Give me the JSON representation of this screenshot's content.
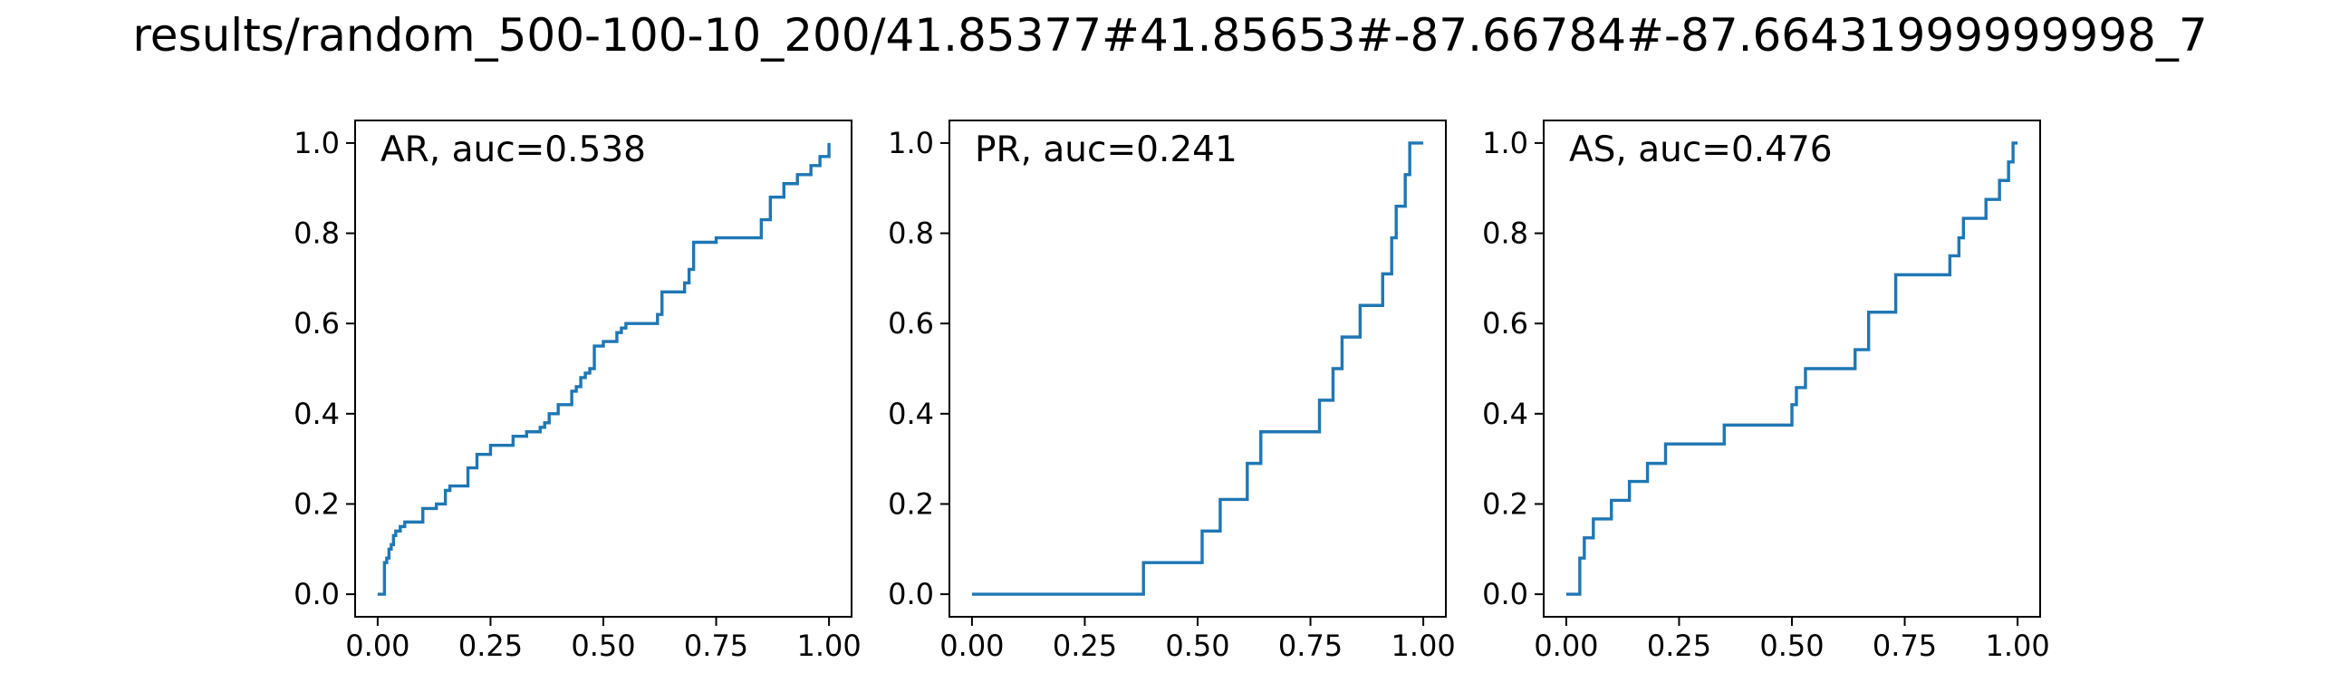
{
  "figure_title": "results/random_500-100-10_200/41.85377#41.85653#-87.66784#-87.66431999999998_7",
  "colors": {
    "line": "#1f77b4",
    "axes": "#000000",
    "background": "#ffffff"
  },
  "chart_data": [
    {
      "type": "line",
      "step": true,
      "title": "AR, auc=0.538",
      "title_placement": "top-left inside",
      "xlim": [
        -0.05,
        1.05
      ],
      "ylim": [
        -0.05,
        1.05
      ],
      "xticks": [
        "0.00",
        "0.25",
        "0.50",
        "0.75",
        "1.00"
      ],
      "yticks": [
        "0.0",
        "0.2",
        "0.4",
        "0.6",
        "0.8",
        "1.0"
      ],
      "grid": false,
      "series": [
        {
          "x": [
            0.0,
            0.015,
            0.015,
            0.02,
            0.025,
            0.03,
            0.035,
            0.04,
            0.05,
            0.06,
            0.1,
            0.13,
            0.15,
            0.16,
            0.2,
            0.22,
            0.25,
            0.3,
            0.33,
            0.36,
            0.37,
            0.38,
            0.4,
            0.43,
            0.44,
            0.45,
            0.46,
            0.47,
            0.48,
            0.5,
            0.53,
            0.54,
            0.55,
            0.62,
            0.63,
            0.68,
            0.69,
            0.7,
            0.75,
            0.8,
            0.85,
            0.87,
            0.9,
            0.93,
            0.96,
            0.98,
            1.0
          ],
          "y": [
            0.0,
            0.0,
            0.07,
            0.08,
            0.1,
            0.11,
            0.13,
            0.14,
            0.15,
            0.16,
            0.19,
            0.2,
            0.23,
            0.24,
            0.28,
            0.31,
            0.33,
            0.35,
            0.36,
            0.37,
            0.38,
            0.4,
            0.42,
            0.45,
            0.46,
            0.48,
            0.49,
            0.5,
            0.55,
            0.56,
            0.58,
            0.59,
            0.6,
            0.62,
            0.67,
            0.69,
            0.72,
            0.78,
            0.79,
            0.79,
            0.83,
            0.88,
            0.91,
            0.93,
            0.95,
            0.97,
            1.0
          ]
        }
      ]
    },
    {
      "type": "line",
      "step": true,
      "title": "PR, auc=0.241",
      "title_placement": "top-left inside",
      "xlim": [
        -0.05,
        1.05
      ],
      "ylim": [
        -0.05,
        1.05
      ],
      "xticks": [
        "0.00",
        "0.25",
        "0.50",
        "0.75",
        "1.00"
      ],
      "yticks": [
        "0.0",
        "0.2",
        "0.4",
        "0.6",
        "0.8",
        "1.0"
      ],
      "grid": false,
      "series": [
        {
          "x": [
            0.0,
            0.38,
            0.51,
            0.55,
            0.61,
            0.64,
            0.77,
            0.8,
            0.82,
            0.86,
            0.91,
            0.93,
            0.94,
            0.96,
            0.97,
            1.0
          ],
          "y": [
            0.0,
            0.07,
            0.14,
            0.21,
            0.29,
            0.36,
            0.43,
            0.5,
            0.57,
            0.64,
            0.71,
            0.79,
            0.86,
            0.93,
            1.0,
            1.0
          ]
        }
      ]
    },
    {
      "type": "line",
      "step": true,
      "title": "AS, auc=0.476",
      "title_placement": "top-left inside",
      "xlim": [
        -0.05,
        1.05
      ],
      "ylim": [
        -0.05,
        1.05
      ],
      "xticks": [
        "0.00",
        "0.25",
        "0.50",
        "0.75",
        "1.00"
      ],
      "yticks": [
        "0.0",
        "0.2",
        "0.4",
        "0.6",
        "0.8",
        "1.0"
      ],
      "grid": false,
      "series": [
        {
          "x": [
            0.0,
            0.03,
            0.03,
            0.04,
            0.06,
            0.1,
            0.14,
            0.18,
            0.22,
            0.35,
            0.5,
            0.5,
            0.51,
            0.53,
            0.64,
            0.67,
            0.73,
            0.85,
            0.87,
            0.88,
            0.93,
            0.96,
            0.98,
            0.99,
            1.0
          ],
          "y": [
            0.0,
            0.0,
            0.08,
            0.125,
            0.167,
            0.208,
            0.25,
            0.29,
            0.333,
            0.375,
            0.417,
            0.42,
            0.458,
            0.5,
            0.542,
            0.625,
            0.708,
            0.75,
            0.79,
            0.833,
            0.875,
            0.917,
            0.958,
            1.0,
            1.0
          ]
        }
      ]
    }
  ]
}
